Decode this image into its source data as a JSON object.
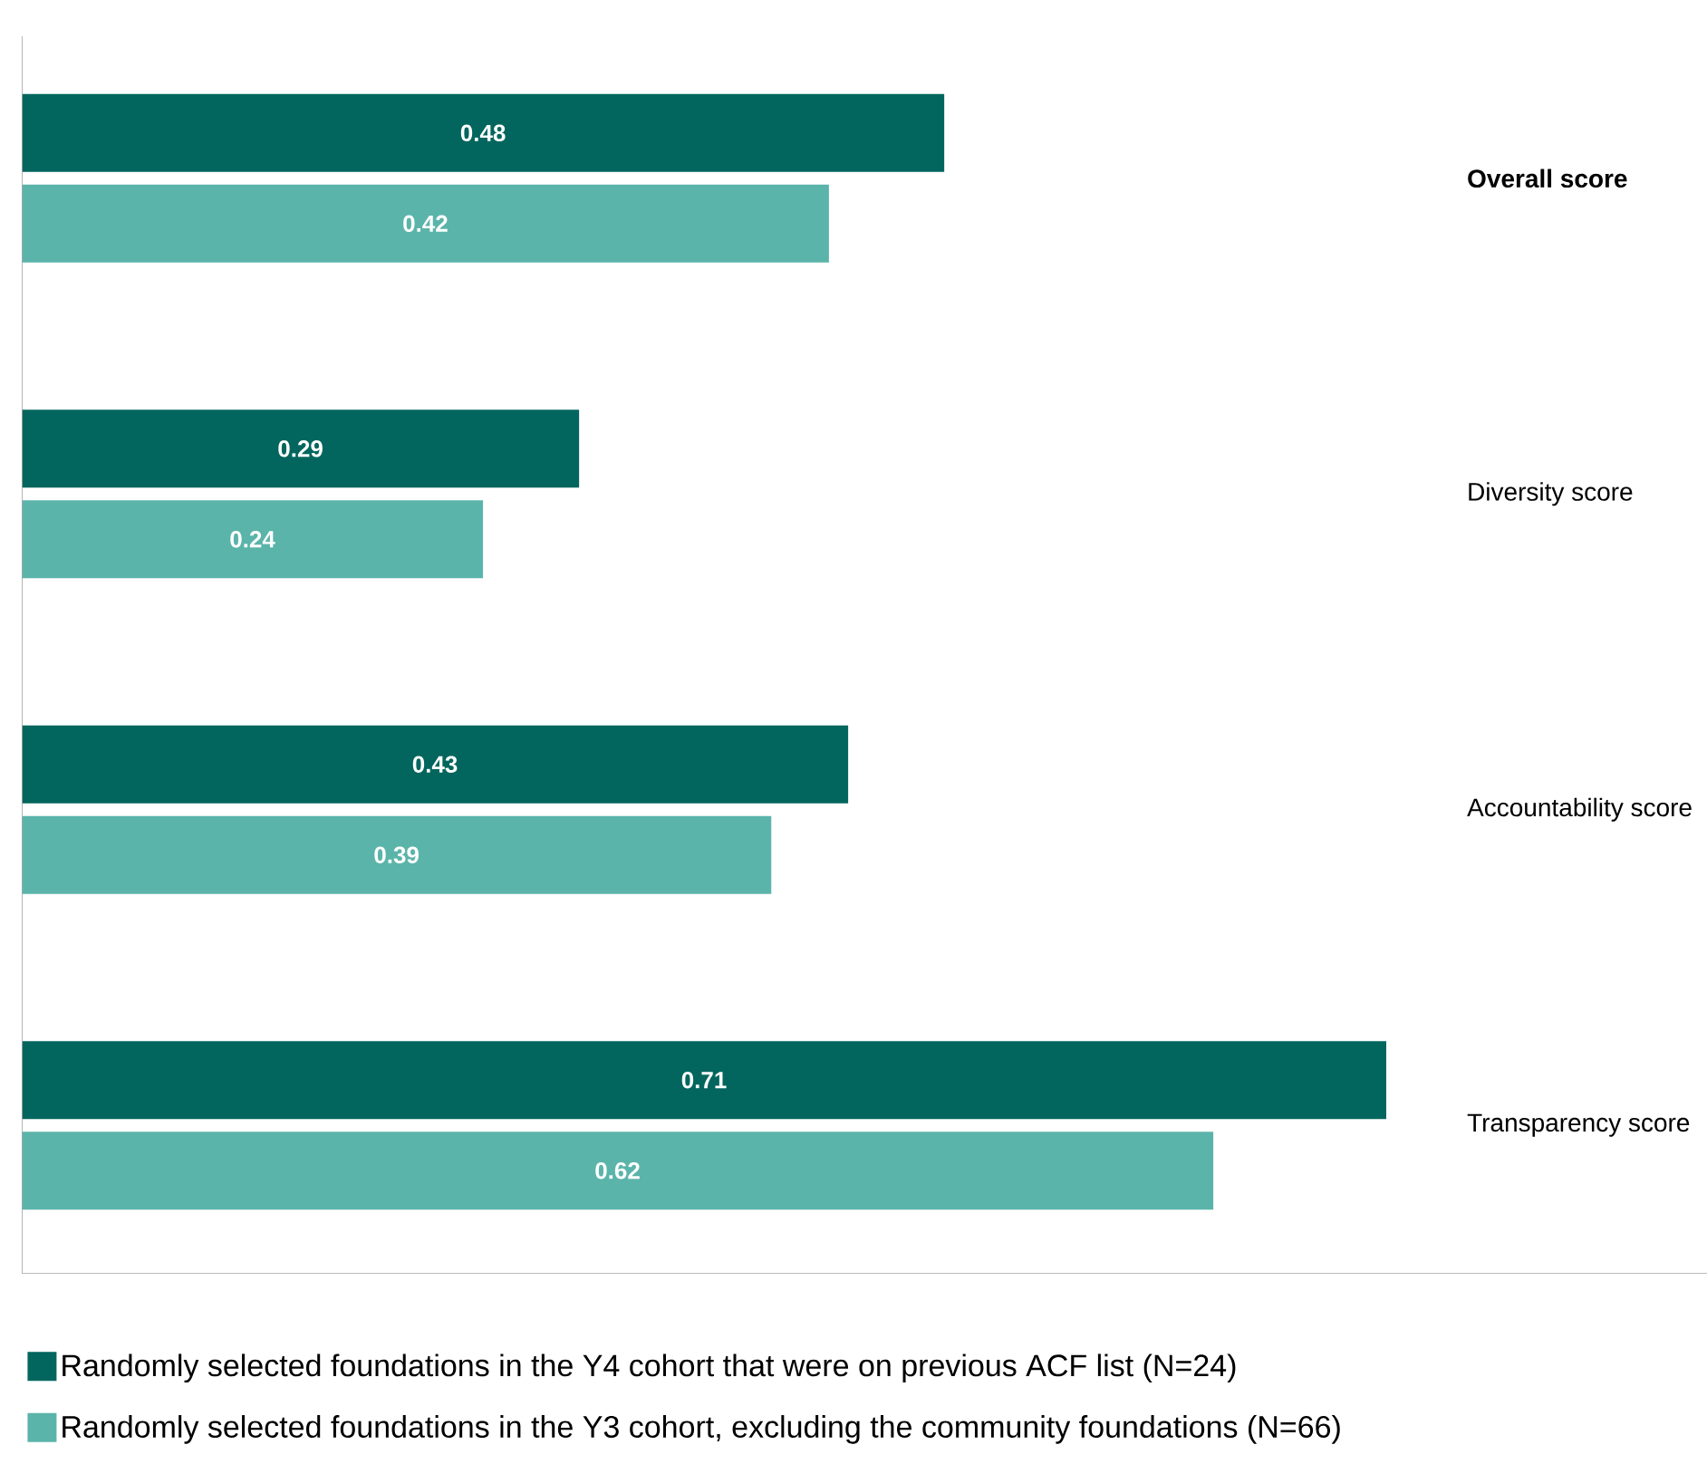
{
  "chart_data": {
    "type": "bar",
    "orientation": "horizontal",
    "categories": [
      "**Overall score**",
      "Diversity score",
      "Accountability score",
      "Transparency score"
    ],
    "series": [
      {
        "name": "Randomly selected foundations in the Y4 cohort that were on previous ACF list (N=24)",
        "color": "#03665e",
        "values": [
          0.48,
          0.29,
          0.43,
          0.71
        ]
      },
      {
        "name": "Randomly selected foundations in the Y3 cohort, excluding the community foundations (N=66)",
        "color": "#5bb4aa",
        "values": [
          0.42,
          0.24,
          0.39,
          0.62
        ]
      }
    ],
    "tick_labels": "y",
    "data_labels": true,
    "legend": "bottom",
    "grid": false
  }
}
